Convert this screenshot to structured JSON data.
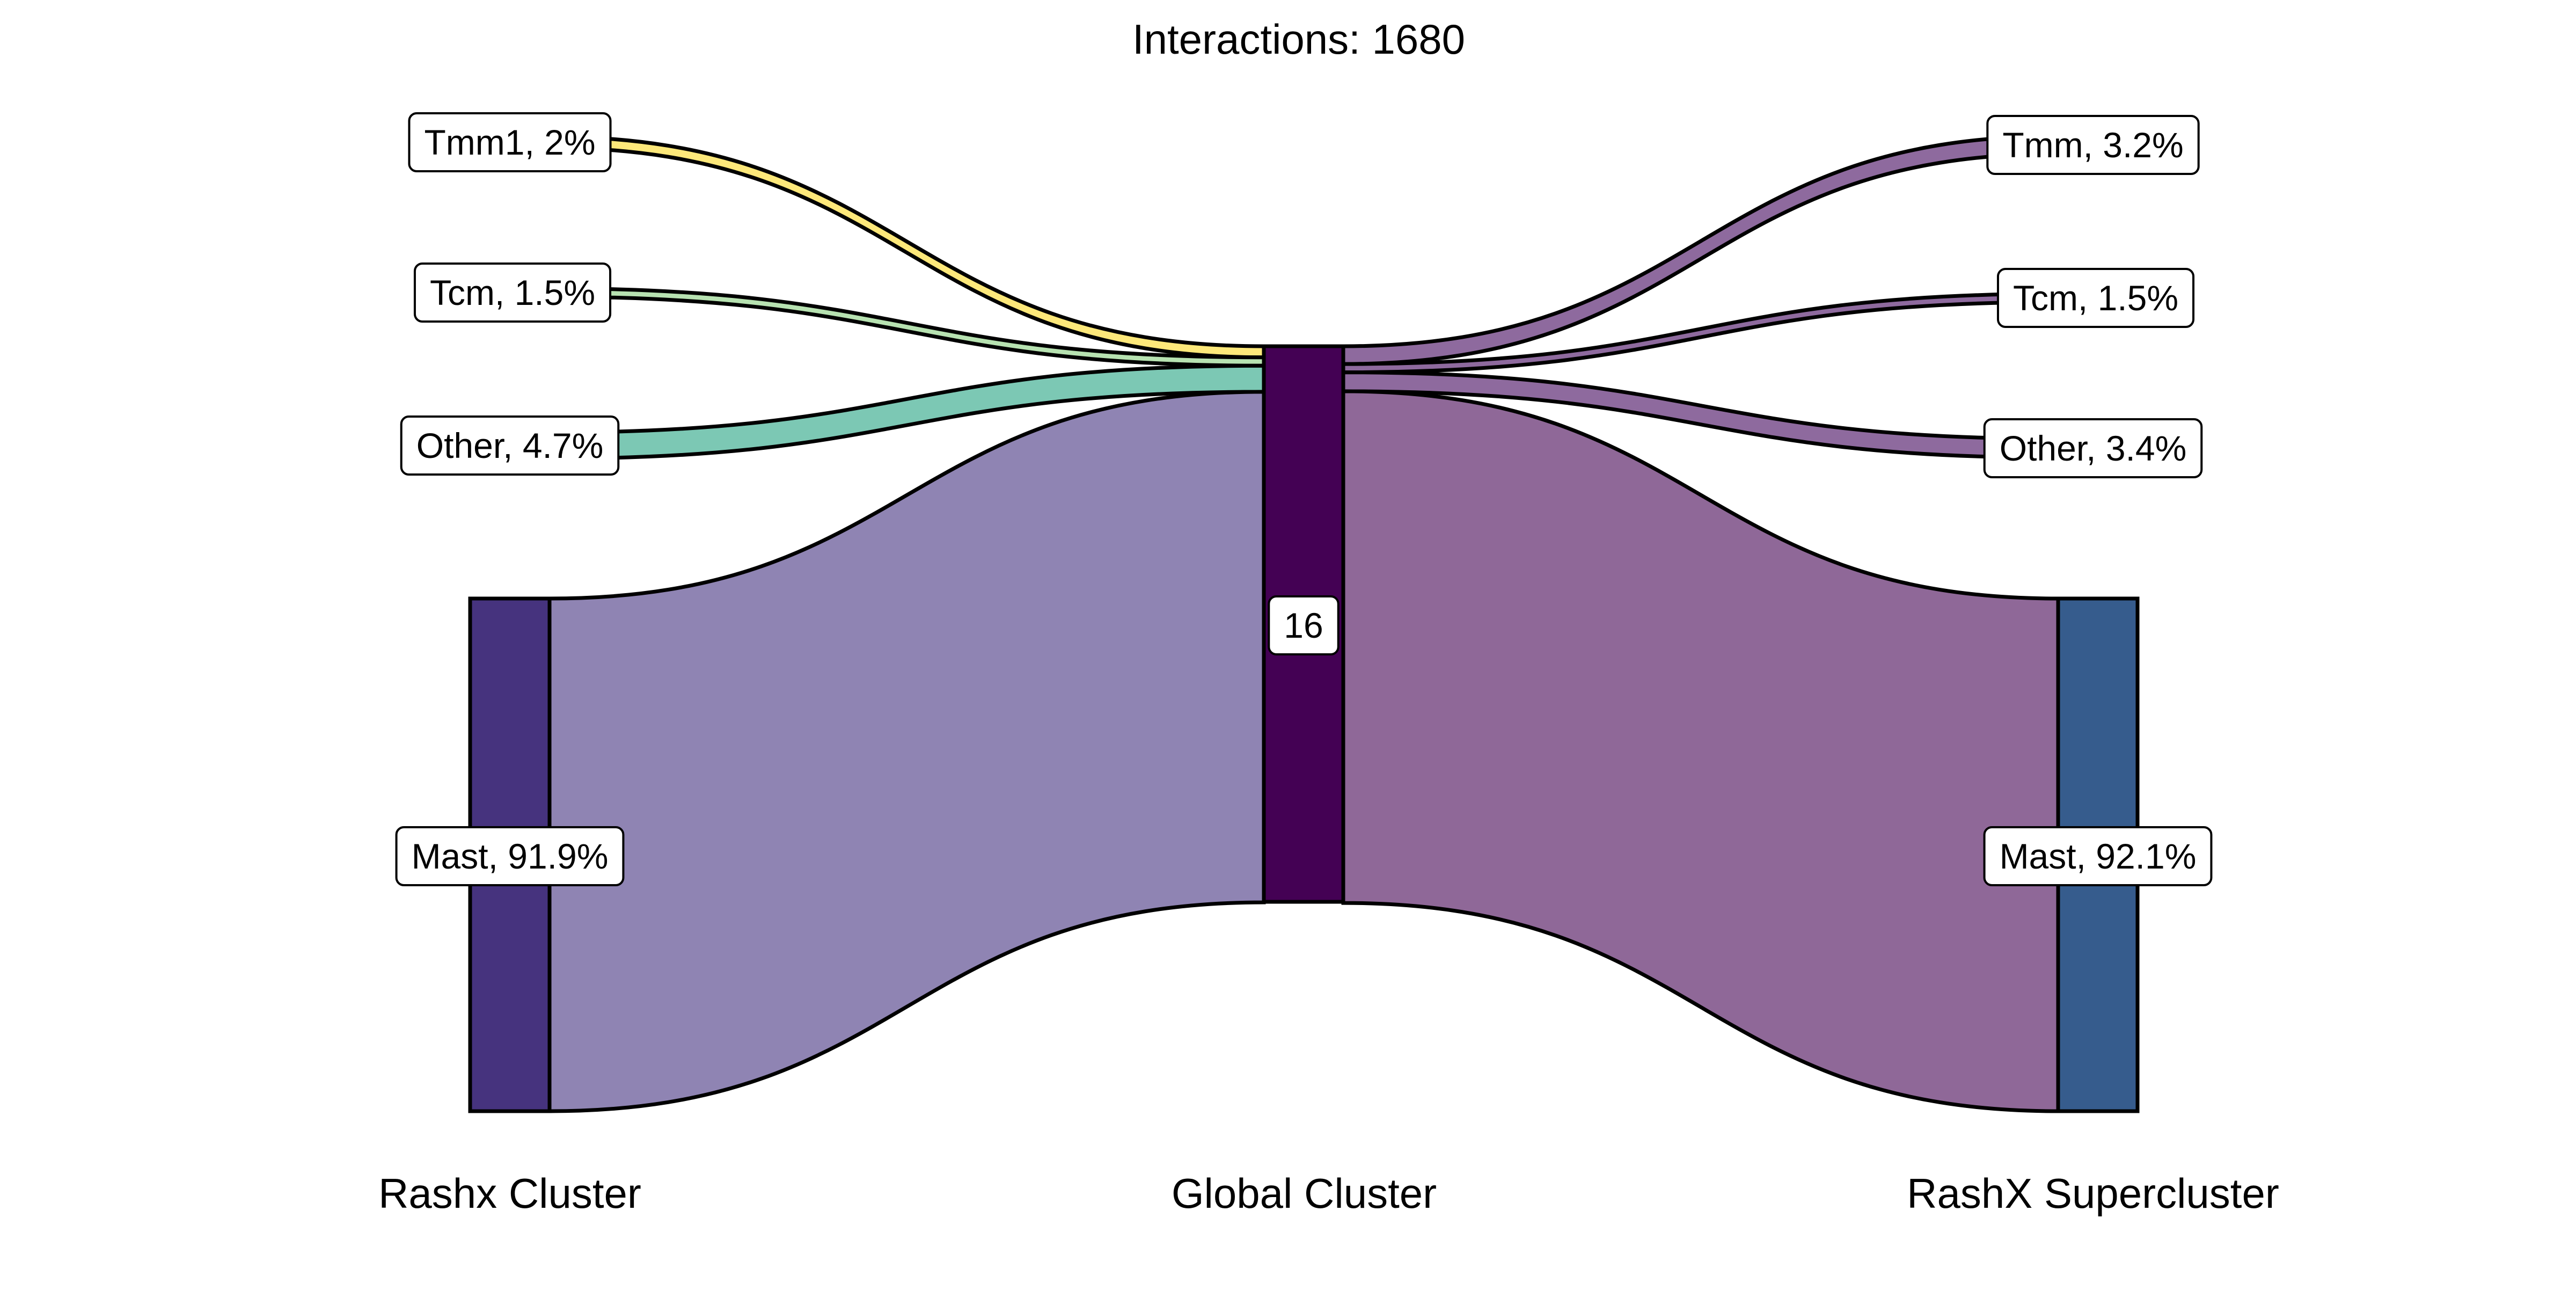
{
  "chart_data": {
    "type": "sankey",
    "title": "Interactions: 1680",
    "axes": [
      "Rashx Cluster",
      "Global Cluster",
      "RashX Supercluster"
    ],
    "left_nodes": [
      {
        "label": "Tmm1, 2%",
        "value": 2.0,
        "color": "#fde87a"
      },
      {
        "label": "Tcm, 1.5%",
        "value": 1.5,
        "color": "#b7e2b1"
      },
      {
        "label": "Other, 4.7%",
        "value": 4.7,
        "color": "#7cc8b4"
      },
      {
        "label": "Mast, 91.9%",
        "value": 91.9,
        "color": "#46337e",
        "flow_color": "#8f84b3"
      }
    ],
    "center_node": {
      "label": "16",
      "color": "#440154"
    },
    "right_nodes": [
      {
        "label": "Tmm, 3.2%",
        "value": 3.2,
        "color": "#8e6a9e"
      },
      {
        "label": "Tcm, 1.5%",
        "value": 1.5,
        "color": "#8e6a9e"
      },
      {
        "label": "Other, 3.4%",
        "value": 3.4,
        "color": "#8e6a9e"
      },
      {
        "label": "Mast, 92.1%",
        "value": 92.1,
        "color": "#365c8d",
        "flow_color": "#8f6898"
      }
    ]
  }
}
